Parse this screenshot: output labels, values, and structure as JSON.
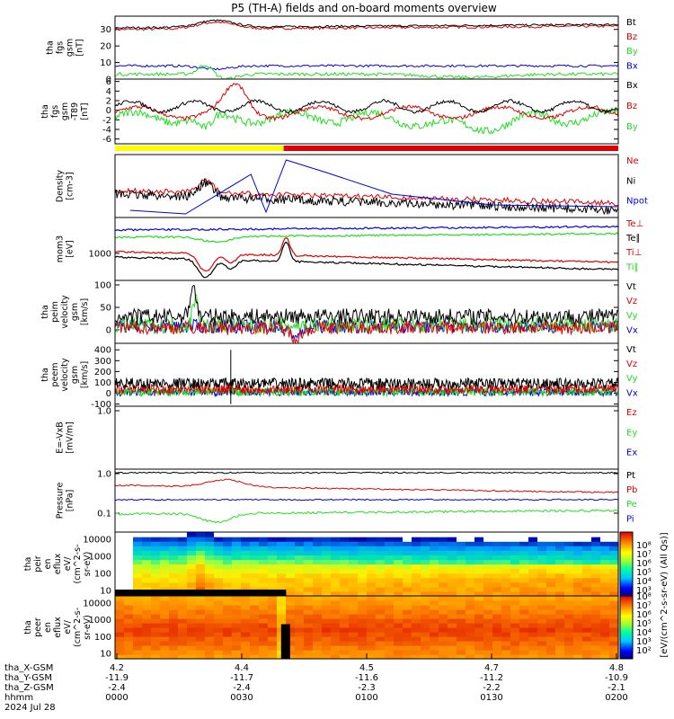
{
  "title": "P5 (TH-A) fields and on-board moments overview",
  "colors": {
    "black": "#000000",
    "red": "#dd0000",
    "green": "#22dd22",
    "blue": "#0000dd",
    "yellow": "#ffff00"
  },
  "chart_data": [
    {
      "type": "line",
      "ylabel": [
        "tha",
        "fgs",
        "gsm",
        "[nT]"
      ],
      "yticks": [
        "0",
        "10",
        "20",
        "30"
      ],
      "ylim": [
        0,
        38
      ],
      "series": [
        {
          "name": "Bt",
          "color": "black",
          "level": 32
        },
        {
          "name": "Bz",
          "color": "red",
          "level": 32
        },
        {
          "name": "By",
          "color": "green",
          "level": 3
        },
        {
          "name": "Bx",
          "color": "blue",
          "level": 8
        }
      ]
    },
    {
      "type": "line",
      "ylabel": [
        "tha",
        "fgs",
        "gsm",
        "-T89",
        "[nT]"
      ],
      "yticks": [
        "6",
        "4",
        "2",
        "0",
        "-2",
        "-4",
        "-6"
      ],
      "ylim": [
        -7,
        6.5
      ],
      "series": [
        {
          "name": "Bx",
          "color": "black",
          "level": 0
        },
        {
          "name": "Bz",
          "color": "red",
          "level": -1
        },
        {
          "name": "By",
          "color": "green",
          "level": -2
        }
      ]
    },
    {
      "type": "line",
      "ylabel": [
        "Density",
        "[cm-3]"
      ],
      "yticks": [],
      "ylim": [
        0,
        1
      ],
      "series": [
        {
          "name": "Ne",
          "color": "red"
        },
        {
          "name": "Ni",
          "color": "black"
        },
        {
          "name": "Npot",
          "color": "blue"
        }
      ]
    },
    {
      "type": "line",
      "ylabel": [
        "mom3",
        "[eV]"
      ],
      "yticks": [
        "1000"
      ],
      "ylim": [
        0,
        1
      ],
      "series": [
        {
          "name": "Te⊥",
          "color": "red"
        },
        {
          "name": "Te∥",
          "color": "black"
        },
        {
          "name": "Ti⊥",
          "color": "red"
        },
        {
          "name": "Ti∥",
          "color": "green"
        }
      ]
    },
    {
      "type": "line",
      "ylabel": [
        "tha",
        "peim",
        "velocity",
        "gsm",
        "[km/s]"
      ],
      "yticks": [
        "100",
        "50",
        "0"
      ],
      "ylim": [
        -30,
        110
      ],
      "series": [
        {
          "name": "Vt",
          "color": "black"
        },
        {
          "name": "Vz",
          "color": "red"
        },
        {
          "name": "Vy",
          "color": "green"
        },
        {
          "name": "Vx",
          "color": "blue"
        }
      ]
    },
    {
      "type": "line",
      "ylabel": [
        "tha",
        "peem",
        "velocity",
        "gsm",
        "[km/s]"
      ],
      "yticks": [
        "400",
        "300",
        "200",
        "100",
        "0",
        "-100"
      ],
      "ylim": [
        -120,
        460
      ],
      "series": [
        {
          "name": "Vt",
          "color": "black"
        },
        {
          "name": "Vz",
          "color": "red"
        },
        {
          "name": "Vy",
          "color": "green"
        },
        {
          "name": "Vx",
          "color": "blue"
        }
      ]
    },
    {
      "type": "line",
      "ylabel": [
        "E=-VxB",
        "[mV/m]"
      ],
      "yticks": [
        "1.0"
      ],
      "ylim": [
        0,
        1
      ],
      "series": [
        {
          "name": "Ez",
          "color": "red"
        },
        {
          "name": "Ey",
          "color": "green"
        },
        {
          "name": "Ex",
          "color": "blue"
        }
      ]
    },
    {
      "type": "line",
      "ylabel": [
        "Pressure",
        "[nPa]"
      ],
      "yticks": [
        "1.0",
        "0.1"
      ],
      "ylim": [
        0,
        1
      ],
      "series": [
        {
          "name": "Pt",
          "color": "black"
        },
        {
          "name": "Pb",
          "color": "red"
        },
        {
          "name": "Pe",
          "color": "green"
        },
        {
          "name": "Pi",
          "color": "blue"
        }
      ]
    },
    {
      "type": "heatmap",
      "ylabel": [
        "tha",
        "peir",
        "en",
        "eflux",
        "eV/",
        "(cm^2-s-",
        "sr-eV)"
      ],
      "yticks": [
        "10000",
        "1000",
        "100",
        "10"
      ]
    },
    {
      "type": "heatmap",
      "ylabel": [
        "tha",
        "peer",
        "en",
        "eflux",
        "eV/",
        "(cm^2-s-",
        "sr-eV)"
      ],
      "yticks": [
        "10000",
        "1000",
        "100",
        "10"
      ]
    }
  ],
  "colorbar": {
    "top_ticks": [
      "10⁸",
      "10⁷",
      "10⁶",
      "10⁵",
      "10⁴",
      "10³"
    ],
    "bottom_ticks": [
      "10⁸",
      "10⁷",
      "10⁶",
      "10⁵",
      "10⁴",
      "10³",
      "10²"
    ],
    "label": "[eV/(cm^2-s-sr-eV) (All Qs)]"
  },
  "x_axis": {
    "rows": [
      {
        "label": "tha_X-GSM",
        "values": [
          "4.2",
          "4.4",
          "4.5",
          "4.7",
          "4.8"
        ]
      },
      {
        "label": "tha_Y-GSM",
        "values": [
          "-11.9",
          "-11.7",
          "-11.6",
          "-11.2",
          "-10.9"
        ]
      },
      {
        "label": "tha_Z-GSM",
        "values": [
          "-2.4",
          "-2.4",
          "-2.3",
          "-2.2",
          "-2.1"
        ]
      },
      {
        "label": "hhmm",
        "values": [
          "0000",
          "0030",
          "0100",
          "0130",
          "0200"
        ]
      }
    ],
    "date": "2024 Jul 28"
  }
}
